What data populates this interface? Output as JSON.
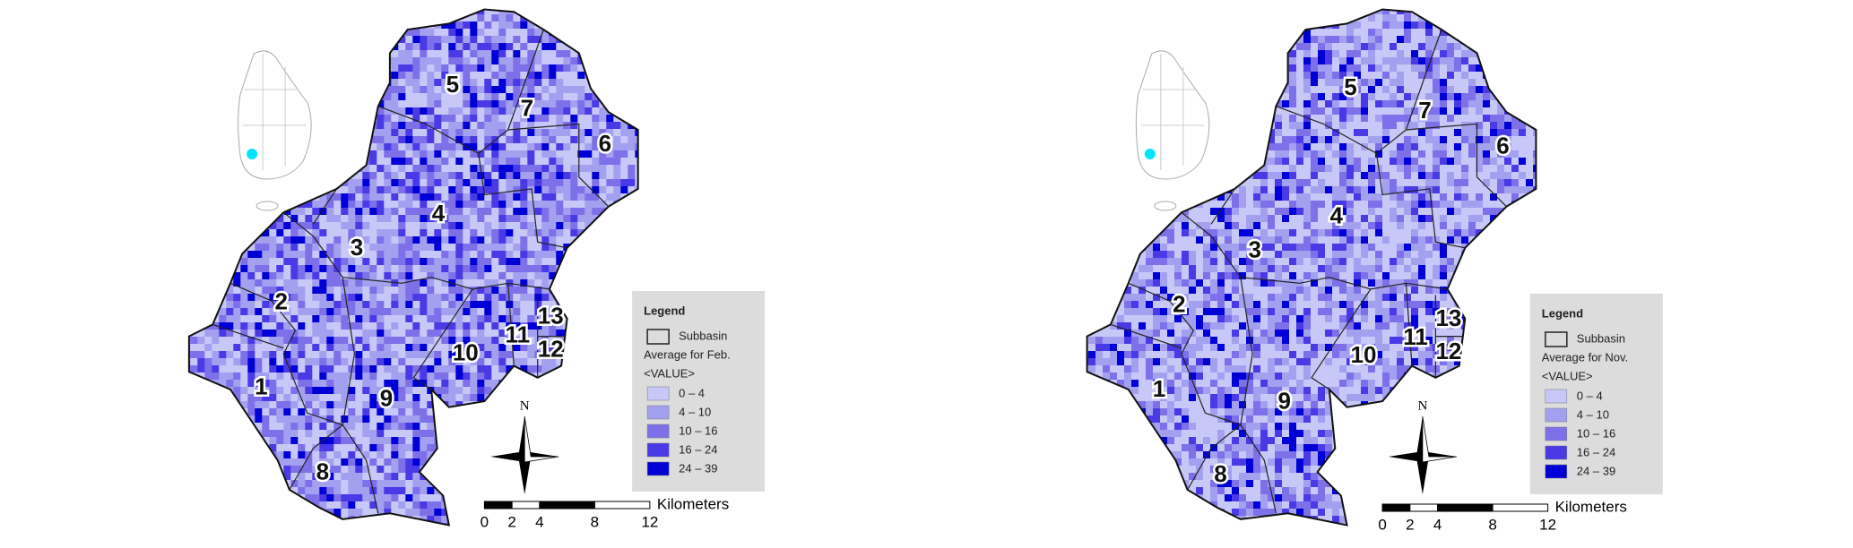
{
  "maps": [
    {
      "subbasins": [
        "1",
        "2",
        "3",
        "4",
        "5",
        "6",
        "7",
        "8",
        "9",
        "10",
        "11",
        "12",
        "13"
      ],
      "legend": {
        "title": "Legend",
        "boundary": "Subbasin",
        "field": "Average for Feb.",
        "value": "<VALUE>",
        "items": [
          {
            "label": "0 – 4",
            "color": "#c8c8f8"
          },
          {
            "label": "4 – 10",
            "color": "#a3a0f0"
          },
          {
            "label": "10 – 16",
            "color": "#7d70e8"
          },
          {
            "label": "16 – 24",
            "color": "#4a3ae6"
          },
          {
            "label": "24 – 39",
            "color": "#0000d6"
          }
        ]
      }
    },
    {
      "subbasins": [
        "1",
        "2",
        "3",
        "4",
        "5",
        "6",
        "7",
        "8",
        "9",
        "10",
        "11",
        "12",
        "13"
      ],
      "legend": {
        "title": "Legend",
        "boundary": "Subbasin",
        "field": "Average for Nov.",
        "value": "<VALUE>",
        "items": [
          {
            "label": "0 – 4",
            "color": "#c8c8f8"
          },
          {
            "label": "4 – 10",
            "color": "#a3a0f0"
          },
          {
            "label": "10 – 16",
            "color": "#7d70e8"
          },
          {
            "label": "16 – 24",
            "color": "#4a3ae6"
          },
          {
            "label": "24 – 39",
            "color": "#0000d6"
          }
        ]
      }
    }
  ],
  "north": "N",
  "scalebar": {
    "ticks": [
      0,
      2,
      4,
      8,
      12
    ],
    "unit": "Kilometers"
  }
}
